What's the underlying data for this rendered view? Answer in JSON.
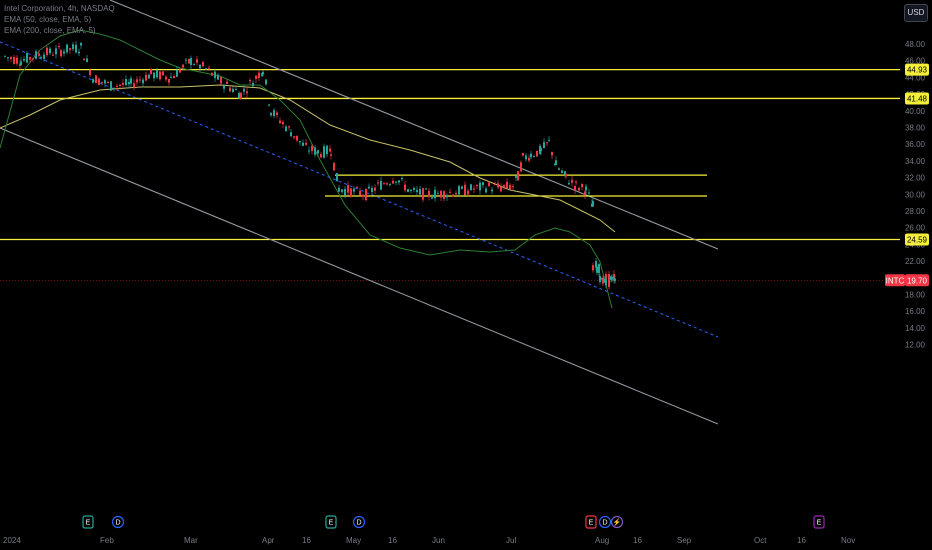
{
  "legend": {
    "symbol_line": "Intel Corporation, 4h, NASDAQ",
    "ma_line": "EMA (50, close, EMA, 5)",
    "ema_line": "EMA (200, close, EMA, 5)"
  },
  "currency_button": "USD",
  "price_axis": {
    "ticks": [
      "48.00",
      "46.00",
      "44.00",
      "42.00",
      "40.00",
      "38.00",
      "36.00",
      "34.00",
      "32.00",
      "30.00",
      "28.00",
      "26.00",
      "24.00",
      "22.00",
      "20.00",
      "18.00",
      "16.00",
      "14.00",
      "12.00"
    ]
  },
  "time_axis": {
    "ticks": [
      "2024",
      "Feb",
      "Mar",
      "Apr",
      "16",
      "May",
      "16",
      "Jun",
      "Jul",
      "Aug",
      "16",
      "Sep",
      "Oct",
      "16",
      "Nov"
    ]
  },
  "price_badges": [
    {
      "label": "44.93",
      "color": "#f5ef3b",
      "text": "dark"
    },
    {
      "label": "41.48",
      "color": "#f5ef3b",
      "text": "dark"
    },
    {
      "label": "24.59",
      "color": "#f5ef3b",
      "text": "dark"
    },
    {
      "label": "19.70",
      "color": "#f23645",
      "text": "light"
    }
  ],
  "symbol_tag": "INTC",
  "horizontal_levels": [
    44.93,
    41.48,
    24.59
  ],
  "range_box": {
    "top": 32.3,
    "bottom": 29.8
  },
  "event_markers": [
    {
      "type": "E",
      "color": "#26a69a"
    },
    {
      "type": "D",
      "color": "#2962ff"
    },
    {
      "type": "E",
      "color": "#26a69a"
    },
    {
      "type": "D",
      "color": "#2962ff"
    },
    {
      "type": "E",
      "color": "#f23645"
    },
    {
      "type": "D",
      "color": "#2962ff"
    },
    {
      "type": "⚡",
      "color": "#7e57c2"
    },
    {
      "type": "E",
      "color": "#9c27b0"
    }
  ],
  "colors": {
    "up": "#26a69a",
    "down": "#f23645",
    "level": "#f5ef3b",
    "channel": "#9598a1",
    "midline": "#2962ff",
    "ema50": "#2e7d32",
    "ema200": "#c9c26a"
  }
}
